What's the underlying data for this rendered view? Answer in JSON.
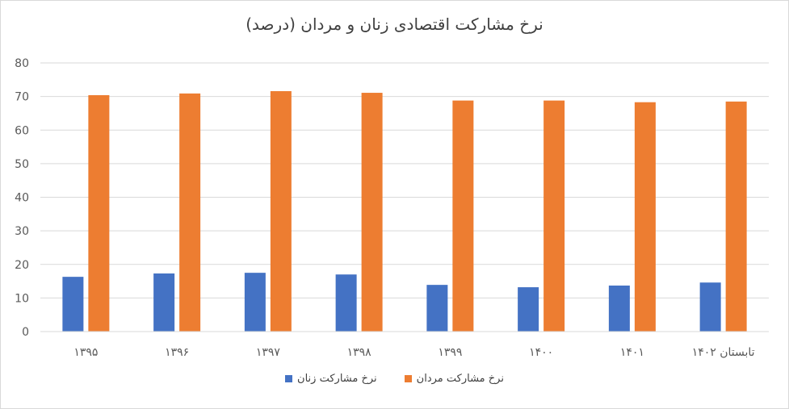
{
  "chart_data": {
    "type": "bar",
    "title": "نرخ مشارکت اقتصادی زنان و مردان (درصد)",
    "categories": [
      "۱۳۹۵",
      "۱۳۹۶",
      "۱۳۹۷",
      "۱۳۹۸",
      "۱۳۹۹",
      "۱۴۰۰",
      "۱۴۰۱",
      "تابستان ۱۴۰۲"
    ],
    "series": [
      {
        "name": "نرخ مشارکت زنان",
        "color": "#4472c4",
        "values": [
          16.3,
          17.3,
          17.5,
          17.0,
          13.9,
          13.2,
          13.7,
          14.6
        ]
      },
      {
        "name": "نرخ مشارکت مردان",
        "color": "#ed7d31",
        "values": [
          70.4,
          70.9,
          71.6,
          71.1,
          68.8,
          68.8,
          68.3,
          68.5
        ]
      }
    ],
    "ylim": [
      0,
      80
    ],
    "yticks": [
      0,
      10,
      20,
      30,
      40,
      50,
      60,
      70,
      80
    ],
    "grid": true,
    "legend_position": "bottom",
    "xlabel": "",
    "ylabel": ""
  }
}
